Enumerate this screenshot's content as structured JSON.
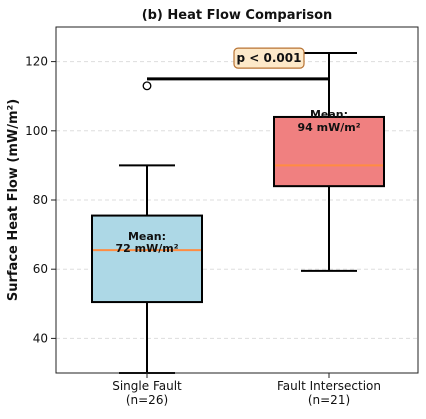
{
  "chart_data": {
    "type": "box",
    "title": "(b) Heat Flow Comparison",
    "xlabel": "",
    "ylabel": "Surface Heat Flow (mW/m²)",
    "ylim": [
      30,
      130
    ],
    "yticks": [
      40,
      60,
      80,
      100,
      120
    ],
    "grid": "horizontal dashed",
    "boxes": [
      {
        "category": "Single Fault",
        "n_label": "(n=26)",
        "whisker_low": 30,
        "q1": 50.5,
        "median": 65.5,
        "q3": 75.5,
        "whisker_high": 90,
        "outliers": [
          113
        ],
        "mean_label": "Mean:",
        "mean_value_label": "72 mW/m²",
        "color": "#add8e6"
      },
      {
        "category": "Fault Intersection",
        "n_label": "(n=21)",
        "whisker_low": 59.5,
        "q1": 84,
        "median": 90,
        "q3": 104,
        "whisker_high": 122.5,
        "outliers": [],
        "mean_label": "Mean:",
        "mean_value_label": "94 mW/m²",
        "color": "#f08080"
      }
    ],
    "median_color": "#ff8c42",
    "significance": {
      "label": "p < 0.001",
      "y": 115,
      "label_y": 121,
      "box_color": "#fde9c9",
      "box_edge": "#b87333"
    }
  }
}
